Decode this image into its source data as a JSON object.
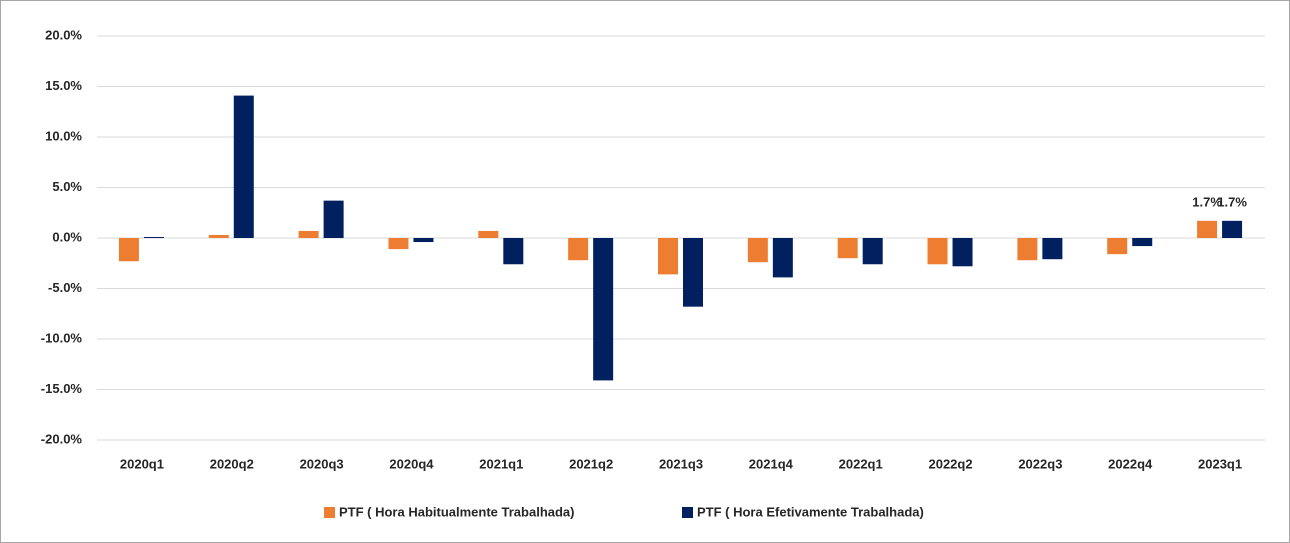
{
  "chart_data": {
    "type": "bar",
    "categories": [
      "2020q1",
      "2020q2",
      "2020q3",
      "2020q4",
      "2021q1",
      "2021q2",
      "2021q3",
      "2021q4",
      "2022q1",
      "2022q2",
      "2022q3",
      "2022q4",
      "2023q1"
    ],
    "series": [
      {
        "name": "PTF ( Hora Habitualmente Trabalhada)",
        "color": "#ed7d31",
        "values": [
          -2.3,
          0.3,
          0.7,
          -1.1,
          0.7,
          -2.2,
          -3.6,
          -2.4,
          -2.0,
          -2.6,
          -2.2,
          -1.6,
          1.7
        ],
        "value_labels": [
          null,
          null,
          null,
          null,
          null,
          null,
          null,
          null,
          null,
          null,
          null,
          null,
          "1.7%"
        ]
      },
      {
        "name": "PTF ( Hora Efetivamente Trabalhada)",
        "color": "#002060",
        "values": [
          0.1,
          14.1,
          3.7,
          -0.4,
          -2.6,
          -14.1,
          -6.8,
          -3.9,
          -2.6,
          -2.8,
          -2.1,
          -0.8,
          1.7
        ],
        "value_labels": [
          null,
          null,
          null,
          null,
          null,
          null,
          null,
          null,
          null,
          null,
          null,
          null,
          "1.7%"
        ]
      }
    ],
    "ylim": [
      -20,
      20
    ],
    "yticks": [
      {
        "value": -20,
        "label": "-20.0%"
      },
      {
        "value": -15,
        "label": "-15.0%"
      },
      {
        "value": -10,
        "label": "-10.0%"
      },
      {
        "value": -5,
        "label": "-5.0%"
      },
      {
        "value": 0,
        "label": "0.0%"
      },
      {
        "value": 5,
        "label": "5.0%"
      },
      {
        "value": 10,
        "label": "10.0%"
      },
      {
        "value": 15,
        "label": "15.0%"
      },
      {
        "value": 20,
        "label": "20.0%"
      }
    ],
    "grid": true,
    "legend": "bottom"
  }
}
